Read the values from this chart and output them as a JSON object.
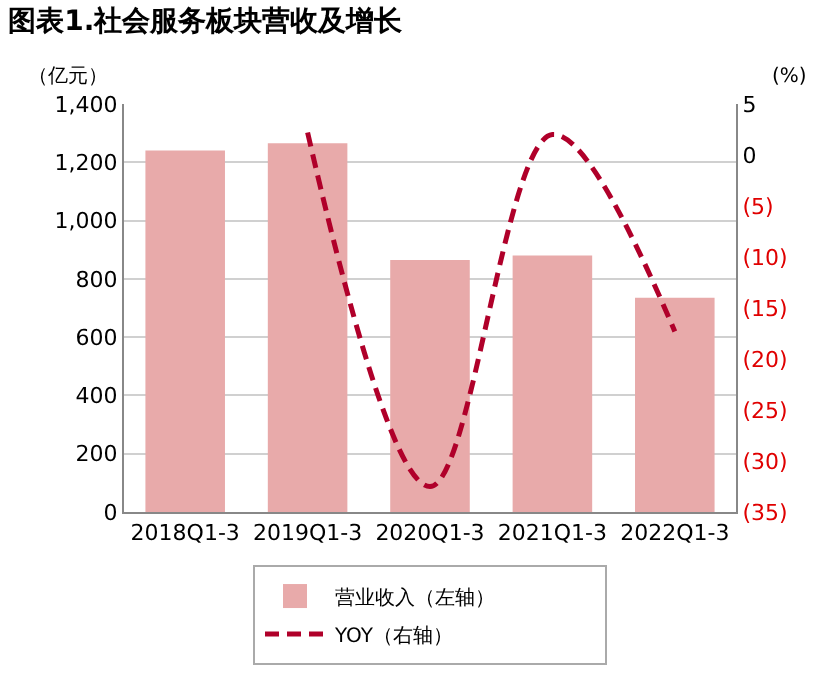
{
  "chart_data": {
    "type": "bar",
    "title": "图表1.社会服务板块营收及增长",
    "ylabel": "（亿元）",
    "y2label": "(%)",
    "categories": [
      "2018Q1-3",
      "2019Q1-3",
      "2020Q1-3",
      "2021Q1-3",
      "2022Q1-3"
    ],
    "series": [
      {
        "name": "营业收入（左轴）",
        "color": "#e8aaaa",
        "values": [
          1240,
          1265,
          865,
          880,
          735
        ]
      },
      {
        "name": "YOY（右轴）",
        "type": "line",
        "axis": "y2",
        "line_style": "dashed",
        "color": "#b0002a",
        "values": [
          null,
          2.2,
          -32.5,
          2,
          -17.3
        ]
      }
    ],
    "ylim": [
      0,
      1400
    ],
    "yticks": [
      0,
      {
        "value": 200,
        "label": "200"
      },
      400,
      600,
      800,
      {
        "value": 1000,
        "label": "1,000"
      },
      {
        "value": 1200,
        "label": "1,200"
      },
      {
        "value": 1400,
        "label": "1,400"
      }
    ],
    "y2lim": [
      -35,
      5
    ],
    "y2ticks": [
      {
        "value": -35,
        "label": "(35)"
      },
      {
        "value": -30,
        "label": "(30)"
      },
      {
        "value": -25,
        "label": "(25)"
      },
      {
        "value": -20,
        "label": "(20)"
      },
      {
        "value": -15,
        "label": "(15)"
      },
      {
        "value": -10,
        "label": "(10)"
      },
      {
        "value": -5,
        "label": "(5)"
      },
      0,
      5
    ],
    "grid": "y",
    "legend": "bottom"
  }
}
